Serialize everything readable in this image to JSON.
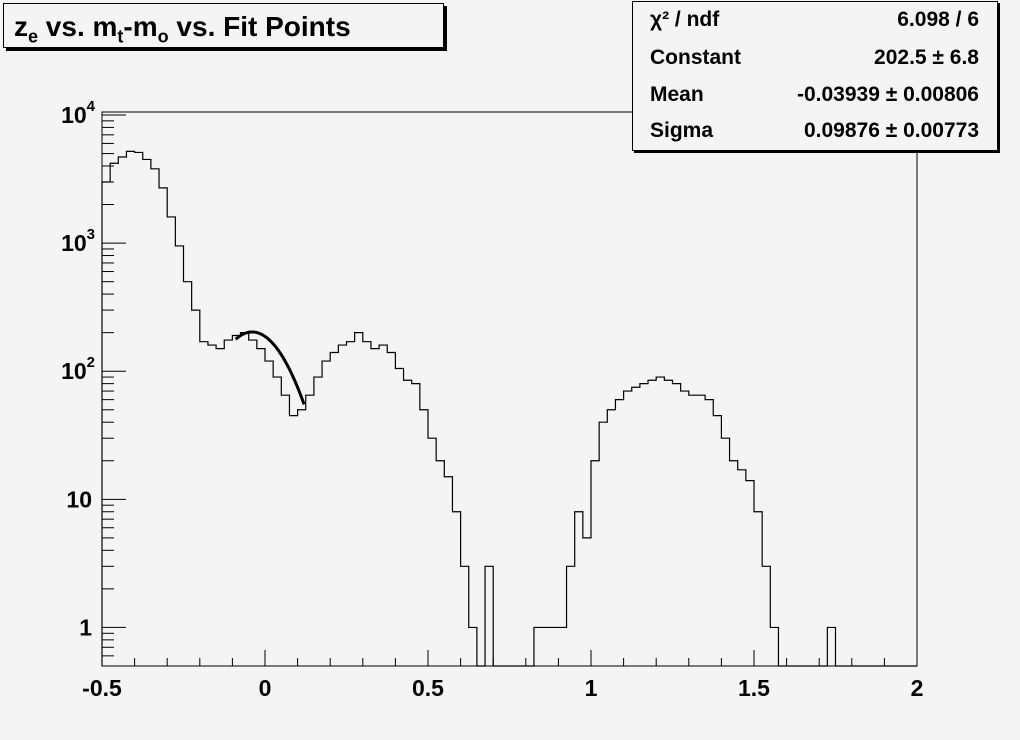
{
  "title": {
    "parts": [
      {
        "text": "z",
        "sub": "e"
      },
      {
        "text": " vs. m",
        "sub": "t"
      },
      {
        "text": "-m",
        "sub": "o"
      },
      {
        "text": " vs. Fit Points",
        "sub": ""
      }
    ]
  },
  "stats": {
    "rows": [
      {
        "label": "χ² / ndf",
        "value": "6.098 / 6"
      },
      {
        "label": "Constant",
        "value": "202.5 ± 6.8"
      },
      {
        "label": "Mean",
        "value": "-0.03939 ± 0.00806"
      },
      {
        "label": "Sigma",
        "value": "0.09876 ± 0.00773"
      }
    ]
  },
  "colors": {
    "background": "#f4f4f4",
    "line": "#000000"
  },
  "chart_data": {
    "type": "histogram",
    "log_y": true,
    "xlim": [
      -0.5,
      2.0
    ],
    "ylim": [
      0.5,
      10000
    ],
    "bin_width": 0.025,
    "x_start": -0.5,
    "x_ticks": [
      "-0.5",
      "0",
      "0.5",
      "1",
      "1.5",
      "2"
    ],
    "y_ticks": [
      {
        "base": "1",
        "exp": ""
      },
      {
        "base": "10",
        "exp": ""
      },
      {
        "base": "10",
        "exp": "2"
      },
      {
        "base": "10",
        "exp": "3"
      },
      {
        "base": "10",
        "exp": "4"
      }
    ],
    "values": [
      3000,
      4200,
      4700,
      5200,
      5100,
      4500,
      3800,
      2700,
      1600,
      950,
      500,
      300,
      170,
      160,
      150,
      175,
      190,
      200,
      175,
      150,
      120,
      90,
      65,
      45,
      50,
      65,
      90,
      120,
      140,
      160,
      170,
      200,
      170,
      150,
      160,
      140,
      105,
      85,
      80,
      50,
      30,
      20,
      15,
      8,
      3,
      1,
      0,
      3,
      0,
      0,
      0,
      0,
      0,
      1,
      1,
      1,
      1,
      3,
      8,
      5,
      20,
      40,
      50,
      60,
      70,
      75,
      80,
      85,
      90,
      85,
      80,
      70,
      65,
      65,
      60,
      45,
      30,
      20,
      17,
      14,
      8,
      3,
      1,
      0,
      0,
      0,
      0,
      0,
      0,
      1,
      0,
      0,
      0,
      0,
      0,
      0,
      0,
      0,
      0,
      0
    ],
    "fit": {
      "type": "gaussian",
      "constant": 202.5,
      "mean": -0.03939,
      "sigma": 0.09876,
      "range": [
        -0.09,
        0.12
      ]
    }
  }
}
